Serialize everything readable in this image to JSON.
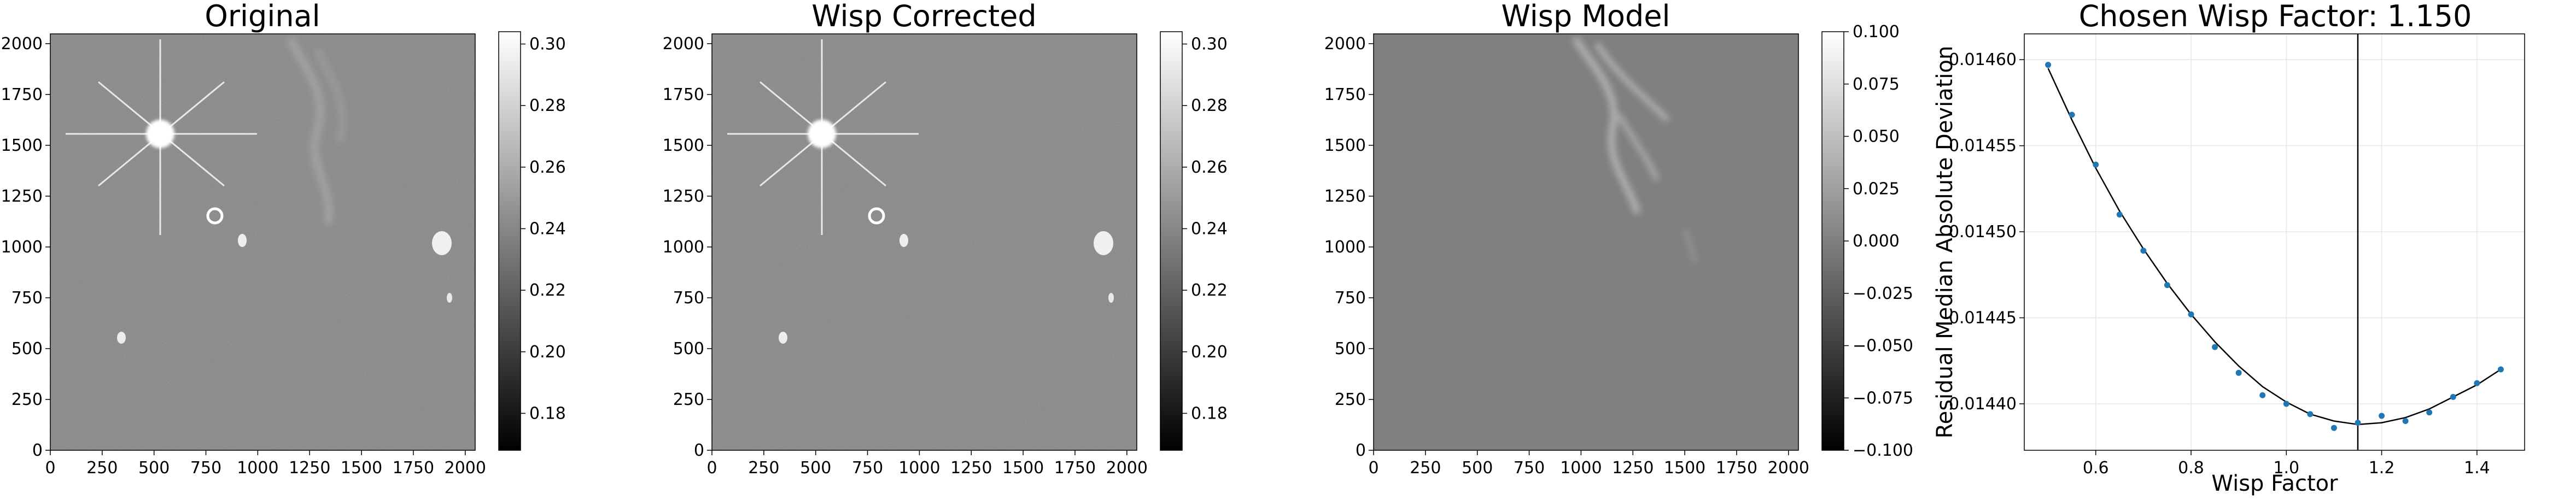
{
  "chart_data": [
    {
      "type": "image",
      "title": "Original",
      "xlim": [
        0,
        2048
      ],
      "ylim": [
        0,
        2048
      ],
      "xticks": [
        "0",
        "250",
        "500",
        "750",
        "1000",
        "1250",
        "1500",
        "1750",
        "2000"
      ],
      "yticks": [
        "0",
        "250",
        "500",
        "750",
        "1000",
        "1250",
        "1500",
        "1750",
        "2000"
      ],
      "colorbar": {
        "range": [
          0.168,
          0.304
        ],
        "ticks": [
          "0.18",
          "0.20",
          "0.22",
          "0.24",
          "0.26",
          "0.28",
          "0.30"
        ],
        "cmap": "gray"
      }
    },
    {
      "type": "image",
      "title": "Wisp Corrected",
      "xlim": [
        0,
        2048
      ],
      "ylim": [
        0,
        2048
      ],
      "xticks": [
        "0",
        "250",
        "500",
        "750",
        "1000",
        "1250",
        "1500",
        "1750",
        "2000"
      ],
      "yticks": [
        "0",
        "250",
        "500",
        "750",
        "1000",
        "1250",
        "1500",
        "1750",
        "2000"
      ],
      "colorbar": {
        "range": [
          0.168,
          0.304
        ],
        "ticks": [
          "0.18",
          "0.20",
          "0.22",
          "0.24",
          "0.26",
          "0.28",
          "0.30"
        ],
        "cmap": "gray"
      }
    },
    {
      "type": "image",
      "title": "Wisp Model",
      "xlim": [
        0,
        2048
      ],
      "ylim": [
        0,
        2048
      ],
      "xticks": [
        "0",
        "250",
        "500",
        "750",
        "1000",
        "1250",
        "1500",
        "1750",
        "2000"
      ],
      "yticks": [
        "0",
        "250",
        "500",
        "750",
        "1000",
        "1250",
        "1500",
        "1750",
        "2000"
      ],
      "colorbar": {
        "range": [
          -0.1,
          0.1
        ],
        "ticks": [
          "0.100",
          "0.075",
          "0.050",
          "0.025",
          "0.000",
          "−0.025",
          "−0.050",
          "−0.075",
          "−0.100"
        ],
        "cmap": "gray"
      }
    },
    {
      "type": "scatter",
      "title": "Chosen Wisp Factor: 1.150",
      "xlabel": "Wisp Factor",
      "ylabel": "Residual Median Absolute Deviation",
      "xlim": [
        0.45,
        1.5
      ],
      "ylim": [
        0.014373,
        0.014615
      ],
      "xticks": [
        "0.6",
        "0.8",
        "1.0",
        "1.2",
        "1.4"
      ],
      "yticks": [
        "0.01440",
        "0.01445",
        "0.01450",
        "0.01455",
        "0.01460"
      ],
      "grid": true,
      "point_color": "#1f77b4",
      "x": [
        0.5,
        0.55,
        0.6,
        0.65,
        0.7,
        0.75,
        0.8,
        0.85,
        0.9,
        0.95,
        1.0,
        1.05,
        1.1,
        1.15,
        1.2,
        1.25,
        1.3,
        1.35,
        1.4,
        1.45
      ],
      "y": [
        0.014597,
        0.014568,
        0.014539,
        0.01451,
        0.014489,
        0.014469,
        0.014452,
        0.014433,
        0.014418,
        0.014405,
        0.0144,
        0.014394,
        0.014386,
        0.014389,
        0.014393,
        0.01439,
        0.014395,
        0.014404,
        0.014412,
        0.01442
      ],
      "fit_x": [
        0.5,
        0.55,
        0.6,
        0.65,
        0.7,
        0.75,
        0.8,
        0.85,
        0.9,
        0.95,
        1.0,
        1.05,
        1.1,
        1.15,
        1.2,
        1.25,
        1.3,
        1.35,
        1.4,
        1.45
      ],
      "fit_y": [
        0.014595,
        0.014565,
        0.014537,
        0.014512,
        0.01449,
        0.01447,
        0.014452,
        0.014436,
        0.014422,
        0.01441,
        0.014401,
        0.014394,
        0.01439,
        0.014388,
        0.014389,
        0.014392,
        0.014397,
        0.014404,
        0.014411,
        0.01442
      ],
      "vline_x": 1.15
    }
  ]
}
